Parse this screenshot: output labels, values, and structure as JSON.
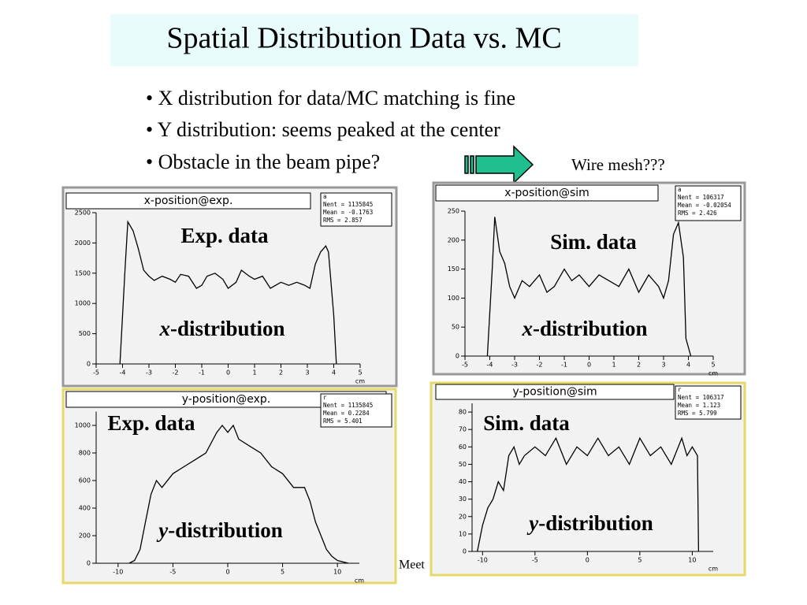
{
  "title": "Spatial Distribution Data vs. MC",
  "bullets": [
    "• X distribution for data/MC matching is fine",
    "• Y distribution: seems peaked at the center",
    "• Obstacle in the beam pipe?"
  ],
  "annotation": "Wire mesh???",
  "footer": "Meet",
  "panels": [
    {
      "type": "histogram",
      "title": "x-position@exp.",
      "stats": [
        "a",
        "Nent = 1135845",
        "Mean = -0.1763",
        "RMS = 2.857"
      ],
      "label": "Exp. data",
      "dist_var": "x",
      "dist_rest": "-distribution",
      "x_unit": "cm",
      "color": "#000000",
      "xlim": [
        -5,
        5
      ],
      "ylim": [
        0,
        2500
      ],
      "xticks": [
        -5,
        -4,
        -3,
        -2,
        -1,
        0,
        1,
        2,
        3,
        4,
        5
      ],
      "yticks": [
        0,
        500,
        1000,
        1500,
        2000,
        2500
      ],
      "x": [
        -4.1,
        -3.9,
        -3.8,
        -3.6,
        -3.4,
        -3.2,
        -3,
        -2.8,
        -2.5,
        -2.2,
        -2,
        -1.8,
        -1.5,
        -1.2,
        -1,
        -0.8,
        -0.5,
        -0.2,
        0,
        0.3,
        0.5,
        0.8,
        1,
        1.3,
        1.6,
        2,
        2.3,
        2.6,
        2.9,
        3.1,
        3.3,
        3.5,
        3.7,
        3.8,
        4.0,
        4.1
      ],
      "values": [
        0,
        1600,
        2350,
        2200,
        1900,
        1550,
        1450,
        1380,
        1450,
        1400,
        1350,
        1480,
        1450,
        1250,
        1300,
        1450,
        1500,
        1400,
        1250,
        1350,
        1550,
        1450,
        1400,
        1450,
        1250,
        1350,
        1300,
        1350,
        1300,
        1250,
        1650,
        1850,
        1950,
        1850,
        800,
        0
      ]
    },
    {
      "type": "histogram",
      "title": "x-position@sim",
      "stats": [
        "a",
        "Nent = 106317",
        "Mean = -0.02054",
        "RMS = 2.426"
      ],
      "label": "Sim. data",
      "dist_var": "x",
      "dist_rest": "-distribution",
      "x_unit": "cm",
      "color": "#000000",
      "xlim": [
        -5,
        5
      ],
      "ylim": [
        0,
        250
      ],
      "xticks": [
        -5,
        -4,
        -3,
        -2,
        -1,
        0,
        1,
        2,
        3,
        4,
        5
      ],
      "yticks": [
        0,
        50,
        100,
        150,
        200,
        250
      ],
      "x": [
        -4.1,
        -3.9,
        -3.8,
        -3.6,
        -3.4,
        -3.2,
        -3,
        -2.7,
        -2.4,
        -2,
        -1.7,
        -1.4,
        -1,
        -0.7,
        -0.4,
        0,
        0.4,
        0.8,
        1.2,
        1.6,
        2,
        2.4,
        2.8,
        3,
        3.2,
        3.4,
        3.6,
        3.8,
        3.9,
        4.1
      ],
      "values": [
        0,
        150,
        240,
        180,
        160,
        120,
        100,
        130,
        120,
        140,
        110,
        120,
        150,
        130,
        140,
        120,
        140,
        130,
        120,
        150,
        110,
        140,
        120,
        100,
        130,
        210,
        230,
        170,
        30,
        0
      ]
    },
    {
      "type": "histogram",
      "title": "y-position@exp.",
      "stats": [
        "r",
        "Nent = 1135845",
        "Mean = 0.2284",
        "RMS = 5.401"
      ],
      "label": "Exp. data",
      "dist_var": "y",
      "dist_rest": "-distribution",
      "x_unit": "cm",
      "color": "#000000",
      "xlim": [
        -12,
        12
      ],
      "ylim": [
        0,
        1100
      ],
      "xticks": [
        -10,
        -5,
        0,
        5,
        10
      ],
      "yticks": [
        0,
        200,
        400,
        600,
        800,
        1000
      ],
      "x": [
        -9,
        -8.5,
        -8,
        -7.5,
        -7,
        -6.5,
        -6,
        -5,
        -4,
        -3,
        -2,
        -1,
        -0.5,
        0,
        0.5,
        1,
        2,
        3,
        4,
        5,
        6,
        7,
        7.5,
        8,
        8.5,
        9,
        9.5,
        10,
        11
      ],
      "values": [
        0,
        20,
        100,
        300,
        500,
        600,
        550,
        650,
        700,
        750,
        800,
        950,
        1000,
        950,
        1000,
        900,
        850,
        800,
        700,
        650,
        550,
        550,
        450,
        300,
        200,
        100,
        50,
        20,
        0
      ]
    },
    {
      "type": "histogram",
      "title": "y-position@sim",
      "stats": [
        "r",
        "Nent = 106317",
        "Mean = 1.123",
        "RMS = 5.799"
      ],
      "label": "Sim. data",
      "dist_var": "y",
      "dist_rest": "-distribution",
      "x_unit": "cm",
      "color": "#000000",
      "xlim": [
        -11,
        12
      ],
      "ylim": [
        0,
        85
      ],
      "xticks": [
        -10,
        -5,
        0,
        5,
        10
      ],
      "yticks": [
        0,
        10,
        20,
        30,
        40,
        50,
        60,
        70,
        80
      ],
      "x": [
        -10.5,
        -10,
        -9.5,
        -9,
        -8.5,
        -8,
        -7.5,
        -7,
        -6.5,
        -6,
        -5,
        -4,
        -3,
        -2,
        -1,
        0,
        1,
        2,
        3,
        4,
        5,
        6,
        7,
        8,
        9,
        9.5,
        10,
        10.5,
        10.6
      ],
      "values": [
        0,
        15,
        25,
        30,
        40,
        35,
        55,
        60,
        50,
        55,
        60,
        55,
        65,
        50,
        60,
        55,
        65,
        55,
        60,
        50,
        65,
        55,
        60,
        50,
        65,
        55,
        60,
        55,
        0
      ]
    }
  ]
}
